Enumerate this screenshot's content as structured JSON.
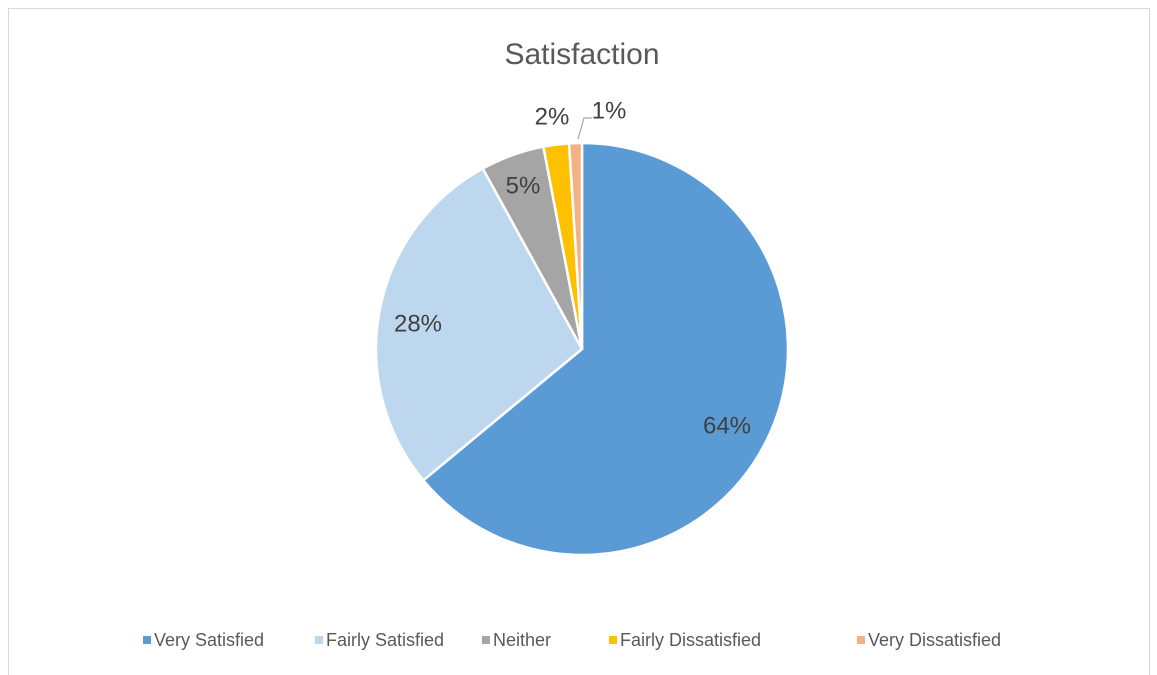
{
  "chart_data": {
    "type": "pie",
    "title": "Satisfaction",
    "categories": [
      "Very Satisfied",
      "Fairly Satisfied",
      "Neither",
      "Fairly Dissatisfied",
      "Very Dissatisfied"
    ],
    "values": [
      64,
      28,
      5,
      2,
      1
    ],
    "value_labels": [
      "64%",
      "28%",
      "5%",
      "2%",
      "1%"
    ],
    "colors": [
      "#5b9bd5",
      "#bdd7ee",
      "#a5a5a5",
      "#ffc000",
      "#f4b183"
    ],
    "legend": "bottom"
  }
}
